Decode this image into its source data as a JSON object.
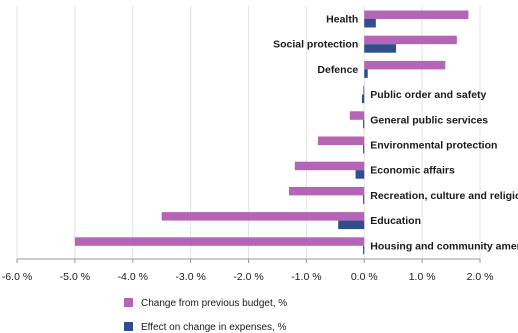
{
  "chart_data": {
    "type": "bar",
    "orientation": "horizontal",
    "title": "",
    "xlabel": "",
    "ylabel": "",
    "xlim": [
      -6.0,
      2.0
    ],
    "x_ticks": [
      -6.0,
      -5.0,
      -4.0,
      -3.0,
      -2.0,
      -1.0,
      0.0,
      1.0,
      2.0
    ],
    "x_tick_labels": [
      "-6.0 %",
      "-5.0 %",
      "-4.0 %",
      "-3.0 %",
      "-2.0 %",
      "-1.0 %",
      "0.0 %",
      "1.0 %",
      "2.0 %"
    ],
    "grid": true,
    "legend_position": "bottom-left",
    "categories": [
      "Health",
      "Social protection",
      "Defence",
      "Public order and safety",
      "General public services",
      "Environmental protection",
      "Economic affairs",
      "Recreation, culture and religion",
      "Education",
      "Housing and community amenities"
    ],
    "series": [
      {
        "name": "Change from previous budget, %",
        "color": "#b565b5",
        "values": [
          1.8,
          1.6,
          1.4,
          -0.02,
          -0.25,
          -0.8,
          -1.2,
          -1.3,
          -3.5,
          -5.0
        ]
      },
      {
        "name": "Effect on change in expenses, %",
        "color": "#2e4f8c",
        "values": [
          0.2,
          0.55,
          0.06,
          -0.04,
          -0.02,
          -0.02,
          -0.15,
          -0.02,
          -0.45,
          -0.02
        ]
      }
    ]
  }
}
